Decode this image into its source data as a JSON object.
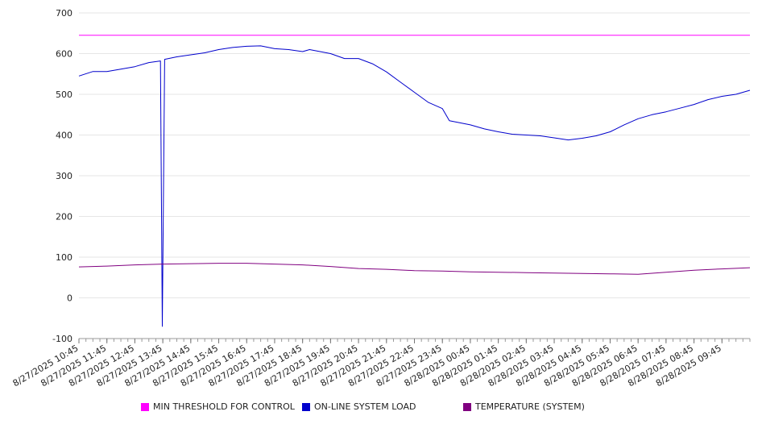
{
  "chart_data": {
    "type": "line",
    "title": "",
    "xlabel": "",
    "ylabel": "",
    "ylim": [
      -100,
      700
    ],
    "yticks": [
      -100,
      0,
      100,
      200,
      300,
      400,
      500,
      600,
      700
    ],
    "grid": true,
    "legend_position": "bottom",
    "xlim": [
      "8/27/2025 10:45",
      "8/28/2025 10:45"
    ],
    "categories": [
      "8/27/2025 10:45",
      "8/27/2025 11:45",
      "8/27/2025 12:45",
      "8/27/2025 13:45",
      "8/27/2025 14:45",
      "8/27/2025 15:45",
      "8/27/2025 16:45",
      "8/27/2025 17:45",
      "8/27/2025 18:45",
      "8/27/2025 19:45",
      "8/27/2025 20:45",
      "8/27/2025 21:45",
      "8/27/2025 22:45",
      "8/27/2025 23:45",
      "8/28/2025 00:45",
      "8/28/2025 01:45",
      "8/28/2025 02:45",
      "8/28/2025 03:45",
      "8/28/2025 04:45",
      "8/28/2025 05:45",
      "8/28/2025 06:45",
      "8/28/2025 07:45",
      "8/28/2025 08:45",
      "8/28/2025 09:45"
    ],
    "series": [
      {
        "name": "MIN THRESHOLD FOR CONTROL",
        "color": "#ff00ff",
        "points": [
          [
            "8/27/2025 10:45",
            645
          ],
          [
            "8/28/2025 10:45",
            645
          ]
        ]
      },
      {
        "name": "ON-LINE SYSTEM LOAD",
        "color": "#0000cc",
        "points": [
          [
            "8/27/2025 10:45",
            545
          ],
          [
            "8/27/2025 11:15",
            556
          ],
          [
            "8/27/2025 11:45",
            556
          ],
          [
            "8/27/2025 12:15",
            562
          ],
          [
            "8/27/2025 12:45",
            568
          ],
          [
            "8/27/2025 13:15",
            578
          ],
          [
            "8/27/2025 13:40",
            582
          ],
          [
            "8/27/2025 13:44",
            -70
          ],
          [
            "8/27/2025 13:49",
            586
          ],
          [
            "8/27/2025 14:15",
            592
          ],
          [
            "8/27/2025 14:45",
            597
          ],
          [
            "8/27/2025 15:15",
            602
          ],
          [
            "8/27/2025 15:45",
            610
          ],
          [
            "8/27/2025 16:15",
            615
          ],
          [
            "8/27/2025 16:45",
            618
          ],
          [
            "8/27/2025 17:15",
            619
          ],
          [
            "8/27/2025 17:45",
            612
          ],
          [
            "8/27/2025 18:15",
            610
          ],
          [
            "8/27/2025 18:45",
            605
          ],
          [
            "8/27/2025 19:00",
            610
          ],
          [
            "8/27/2025 19:45",
            600
          ],
          [
            "8/27/2025 20:15",
            588
          ],
          [
            "8/27/2025 20:45",
            588
          ],
          [
            "8/27/2025 21:15",
            575
          ],
          [
            "8/27/2025 21:45",
            555
          ],
          [
            "8/27/2025 22:15",
            530
          ],
          [
            "8/27/2025 22:45",
            505
          ],
          [
            "8/27/2025 23:15",
            480
          ],
          [
            "8/27/2025 23:45",
            465
          ],
          [
            "8/28/2025 00:00",
            435
          ],
          [
            "8/28/2025 00:45",
            425
          ],
          [
            "8/28/2025 01:15",
            415
          ],
          [
            "8/28/2025 01:45",
            408
          ],
          [
            "8/28/2025 02:15",
            402
          ],
          [
            "8/28/2025 02:45",
            400
          ],
          [
            "8/28/2025 03:15",
            398
          ],
          [
            "8/28/2025 03:45",
            393
          ],
          [
            "8/28/2025 04:15",
            388
          ],
          [
            "8/28/2025 04:45",
            392
          ],
          [
            "8/28/2025 05:15",
            398
          ],
          [
            "8/28/2025 05:45",
            408
          ],
          [
            "8/28/2025 06:15",
            425
          ],
          [
            "8/28/2025 06:45",
            440
          ],
          [
            "8/28/2025 07:15",
            450
          ],
          [
            "8/28/2025 07:45",
            457
          ],
          [
            "8/28/2025 08:15",
            466
          ],
          [
            "8/28/2025 08:45",
            475
          ],
          [
            "8/28/2025 09:15",
            487
          ],
          [
            "8/28/2025 09:45",
            495
          ],
          [
            "8/28/2025 10:15",
            500
          ],
          [
            "8/28/2025 10:45",
            510
          ]
        ]
      },
      {
        "name": "TEMPERATURE (SYSTEM)",
        "color": "#800080",
        "points": [
          [
            "8/27/2025 10:45",
            76
          ],
          [
            "8/27/2025 11:45",
            78
          ],
          [
            "8/27/2025 12:45",
            81
          ],
          [
            "8/27/2025 13:45",
            83
          ],
          [
            "8/27/2025 14:45",
            84
          ],
          [
            "8/27/2025 15:45",
            85
          ],
          [
            "8/27/2025 16:45",
            85
          ],
          [
            "8/27/2025 17:45",
            83
          ],
          [
            "8/27/2025 18:45",
            81
          ],
          [
            "8/27/2025 19:45",
            77
          ],
          [
            "8/27/2025 20:45",
            72
          ],
          [
            "8/27/2025 21:45",
            70
          ],
          [
            "8/27/2025 22:45",
            67
          ],
          [
            "8/27/2025 23:45",
            66
          ],
          [
            "8/28/2025 00:45",
            64
          ],
          [
            "8/28/2025 01:45",
            63
          ],
          [
            "8/28/2025 02:45",
            62
          ],
          [
            "8/28/2025 03:45",
            61
          ],
          [
            "8/28/2025 04:45",
            60
          ],
          [
            "8/28/2025 05:45",
            59
          ],
          [
            "8/28/2025 06:45",
            58
          ],
          [
            "8/28/2025 07:45",
            63
          ],
          [
            "8/28/2025 08:45",
            68
          ],
          [
            "8/28/2025 09:45",
            71
          ],
          [
            "8/28/2025 10:45",
            74
          ]
        ]
      }
    ]
  }
}
